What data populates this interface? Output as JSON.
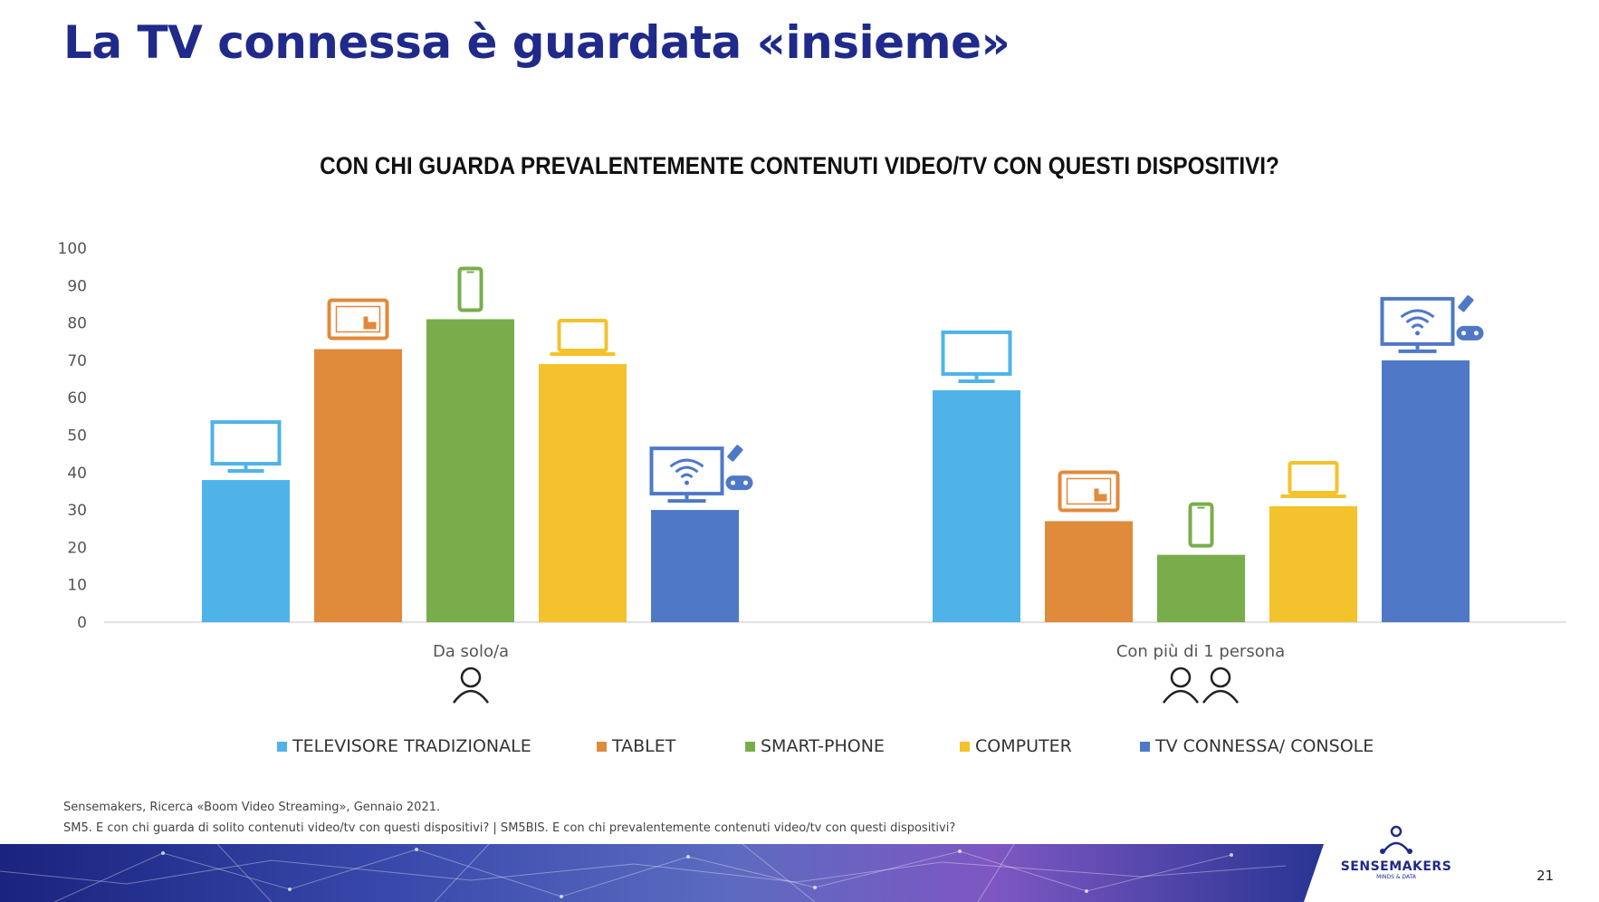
{
  "slide": {
    "title": "La TV connessa è guardata «insieme»",
    "page_number": "21",
    "source_line1": "Sensemakers, Ricerca «Boom Video Streaming», Gennaio 2021.",
    "source_line2": "SM5. E con chi guarda di solito contenuti video/tv con questi dispositivi? | SM5BIS. E con chi prevalentemente contenuti video/tv con questi dispositivi?",
    "logo_text": "SENSEMAKERS",
    "logo_subtext": "MINDS & DATA"
  },
  "chart_data": {
    "type": "bar",
    "title": "CON CHI GUARDA PREVALENTEMENTE CONTENUTI VIDEO/TV CON QUESTI DISPOSITIVI?",
    "categories": [
      "Da solo/a",
      "Con più di 1 persona"
    ],
    "ylim": [
      0,
      100
    ],
    "yticks": [
      0,
      10,
      20,
      30,
      40,
      50,
      60,
      70,
      80,
      90,
      100
    ],
    "grid": false,
    "legend_position": "bottom",
    "series": [
      {
        "name": "TELEVISORE TRADIZIONALE",
        "values": [
          38,
          62
        ],
        "color": "#4fb3ea",
        "icon": "tv-icon"
      },
      {
        "name": "TABLET",
        "values": [
          73,
          27
        ],
        "color": "#e08a3c",
        "icon": "tablet-icon"
      },
      {
        "name": "SMART-PHONE",
        "values": [
          81,
          18
        ],
        "color": "#79ad4b",
        "icon": "smartphone-icon"
      },
      {
        "name": "COMPUTER",
        "values": [
          69,
          31
        ],
        "color": "#f3c22c",
        "icon": "laptop-icon"
      },
      {
        "name": "TV CONNESSA/ CONSOLE",
        "values": [
          30,
          70
        ],
        "color": "#4f79c7",
        "icon": "connected-tv-icon"
      }
    ],
    "category_icons": [
      "person-icon",
      "two-persons-icon"
    ]
  }
}
